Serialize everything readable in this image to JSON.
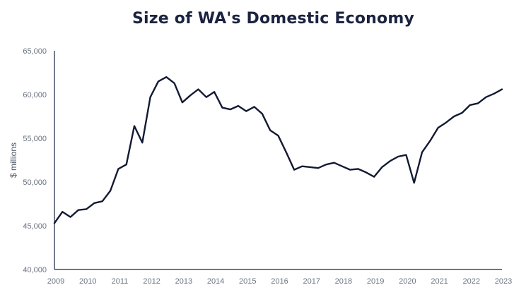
{
  "chart_data": {
    "type": "line",
    "title": "Size of WA's Domestic Economy",
    "xlabel": "",
    "ylabel": "$ millions",
    "xlim": [
      2009,
      2023
    ],
    "ylim": [
      40000,
      65000
    ],
    "grid": false,
    "x_ticks": [
      "2009",
      "2010",
      "2011",
      "2012",
      "2013",
      "2014",
      "2015",
      "2016",
      "2017",
      "2018",
      "2019",
      "2020",
      "2021",
      "2022",
      "2023"
    ],
    "y_ticks": [
      "40,000",
      "45,000",
      "50,000",
      "55,000",
      "60,000",
      "65,000"
    ],
    "y_tick_values": [
      40000,
      45000,
      50000,
      55000,
      60000,
      65000
    ],
    "line_color": "#121a33",
    "series": [
      {
        "x": [
          2009.0,
          2009.25,
          2009.5,
          2009.75,
          2010.0,
          2010.25,
          2010.5,
          2010.75,
          2011.0,
          2011.25,
          2011.5,
          2011.75,
          2012.0,
          2012.25,
          2012.5,
          2012.75,
          2013.0,
          2013.25,
          2013.5,
          2013.75,
          2014.0,
          2014.25,
          2014.5,
          2014.75,
          2015.0,
          2015.25,
          2015.5,
          2015.75,
          2016.0,
          2016.25,
          2016.5,
          2016.75,
          2017.0,
          2017.25,
          2017.5,
          2017.75,
          2018.0,
          2018.25,
          2018.5,
          2018.75,
          2019.0,
          2019.25,
          2019.5,
          2019.75,
          2020.0,
          2020.25,
          2020.5,
          2020.75,
          2021.0,
          2021.25,
          2021.5,
          2021.75,
          2022.0,
          2022.25,
          2022.5,
          2022.75,
          2023.0
        ],
        "values": [
          45300,
          46600,
          46000,
          46800,
          46900,
          47600,
          47800,
          49000,
          51500,
          52000,
          56400,
          54500,
          59700,
          61500,
          62000,
          61300,
          59100,
          59900,
          60600,
          59700,
          60300,
          58500,
          58300,
          58700,
          58100,
          58600,
          57800,
          55900,
          55300,
          53400,
          51400,
          51800,
          51700,
          51600,
          52000,
          52200,
          51800,
          51400,
          51500,
          51100,
          50600,
          51700,
          52400,
          52900,
          53100,
          49900,
          53400,
          54700,
          56200,
          56800,
          57500,
          57900,
          58800,
          59000,
          59700,
          60100,
          60600
        ]
      }
    ]
  }
}
